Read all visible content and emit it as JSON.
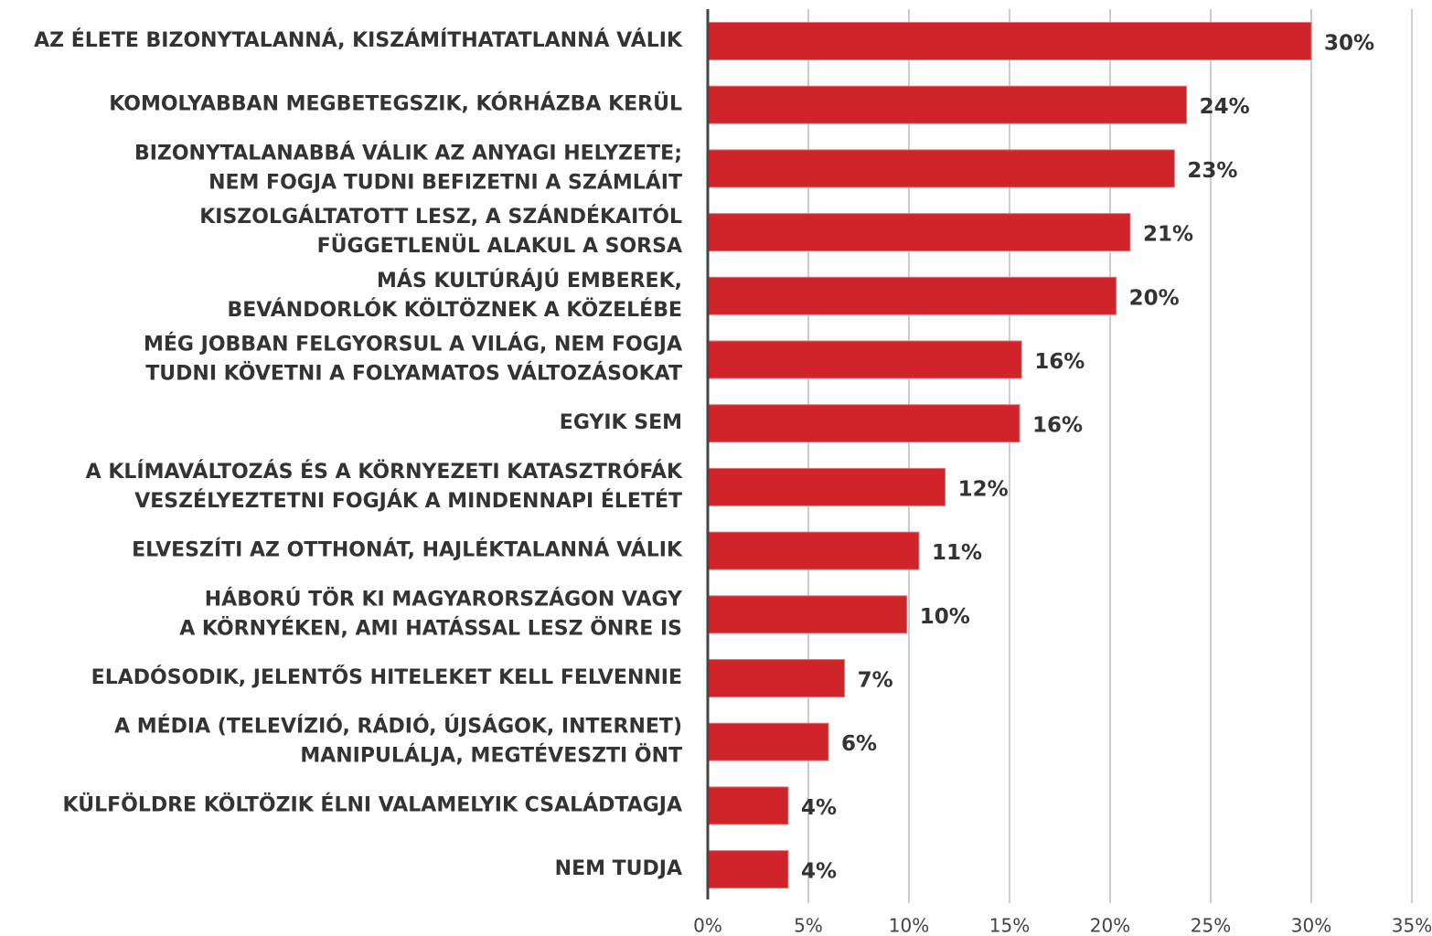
{
  "chart_data": {
    "type": "barh",
    "categories": [
      [
        "AZ ÉLETE BIZONYTALANNÁ, KISZÁMÍTHATATLANNÁ VÁLIK"
      ],
      [
        "KOMOLYABBAN MEGBETEGSZIK, KÓRHÁZBA KERÜL"
      ],
      [
        "BIZONYTALANABBÁ VÁLIK AZ ANYAGI HELYZETE;",
        "NEM FOGJA TUDNI BEFIZETNI A SZÁMLÁIT"
      ],
      [
        "KISZOLGÁLTATOTT LESZ, A SZÁNDÉKAITÓL",
        "FÜGGETLENÜL ALAKUL A SORSA"
      ],
      [
        "MÁS KULTÚRÁJÚ EMBEREK,",
        "BEVÁNDORLÓK KÖLTÖZNEK A KÖZELÉBE"
      ],
      [
        "MÉG JOBBAN FELGYORSUL A VILÁG, NEM FOGJA",
        "TUDNI KÖVETNI A FOLYAMATOS VÁLTOZÁSOKAT"
      ],
      [
        "EGYIK SEM"
      ],
      [
        "A KLÍMAVÁLTOZÁS ÉS A KÖRNYEZETI KATASZTRÓFÁK",
        "VESZÉLYEZTETNI FOGJÁK A MINDENNAPI ÉLETÉT"
      ],
      [
        "ELVESZÍTI AZ OTTHONÁT, HAJLÉKTALANNÁ VÁLIK"
      ],
      [
        "HÁBORÚ TÖR KI MAGYARORSZÁGON VAGY",
        "A KÖRNYÉKEN, AMI HATÁSSAL LESZ ÖNRE IS"
      ],
      [
        "ELADÓSODIK, JELENTŐS HITELEKET KELL FELVENNIE"
      ],
      [
        "A MÉDIA (TELEVÍZIÓ, RÁDIÓ, ÚJSÁGOK, INTERNET)",
        "MANIPULÁLJA, MEGTÉVESZTI ÖNT"
      ],
      [
        "KÜLFÖLDRE KÖLTÖZIK ÉLNI VALAMELYIK CSALÁDTAGJA"
      ],
      [
        "NEM TUDJA"
      ]
    ],
    "values": [
      30,
      23.8,
      23.2,
      21,
      20.3,
      15.6,
      15.5,
      11.8,
      10.5,
      9.9,
      6.8,
      6,
      4,
      4
    ],
    "value_labels": [
      "30%",
      "24%",
      "23%",
      "21%",
      "20%",
      "16%",
      "16%",
      "12%",
      "11%",
      "10%",
      "7%",
      "6%",
      "4%",
      "4%"
    ],
    "color": "#d0232a",
    "xlim": [
      0,
      35
    ],
    "xticks": [
      {
        "value": 0,
        "label": "0%"
      },
      {
        "value": 5,
        "label": "5%"
      },
      {
        "value": 10,
        "label": "10%"
      },
      {
        "value": 15,
        "label": "15%"
      },
      {
        "value": 20,
        "label": "20%"
      },
      {
        "value": 25,
        "label": "25%"
      },
      {
        "value": 30,
        "label": "30%"
      },
      {
        "value": 35,
        "label": "35%"
      }
    ],
    "grid": true
  }
}
